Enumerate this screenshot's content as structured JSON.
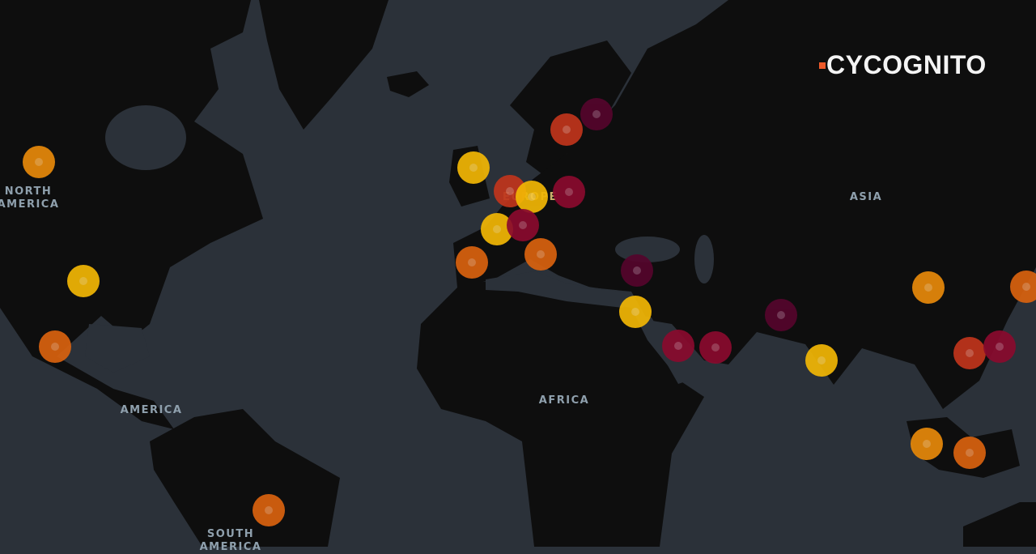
{
  "brand": {
    "logo_text": "CYCOGNITO",
    "accent": "#ee5a2a"
  },
  "map": {
    "ocean_color": "#2b3139",
    "land_color": "#0e0e0e",
    "labels": [
      "NORTH\nAMERICA",
      "AMERICA",
      "SOUTH\nAMERICA",
      "EUROPE",
      "AFRICA",
      "ASIA"
    ],
    "severity_colors": {
      "yellow": "#f2b705",
      "amber": "#e8890a",
      "orange": "#d9620f",
      "red": "#c0351c",
      "crimson": "#8a0a2e",
      "purple": "#55052c"
    },
    "markers": [
      "amber",
      "yellow",
      "orange",
      "orange",
      "yellow",
      "red",
      "yellow",
      "crimson",
      "red",
      "purple",
      "yellow",
      "crimson",
      "orange",
      "orange",
      "purple",
      "yellow",
      "crimson",
      "crimson",
      "purple",
      "yellow",
      "amber",
      "orange",
      "red",
      "crimson",
      "amber",
      "orange"
    ]
  }
}
